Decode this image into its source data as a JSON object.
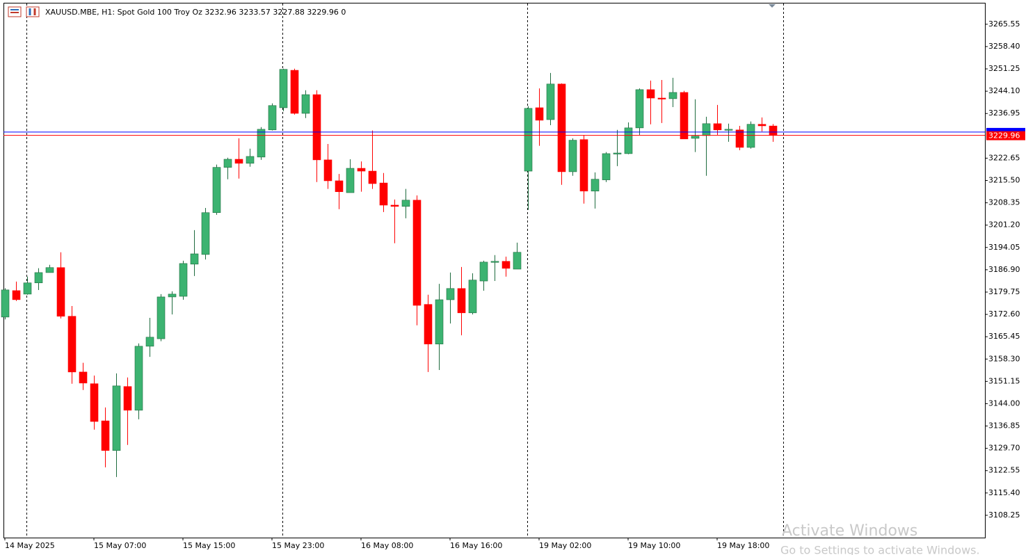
{
  "chart_data": {
    "type": "candlestick",
    "title": "XAUUSD.MBE, H1:  Spot Gold 100 Troy Oz  3232.96 3233.57 3227.88 3229.96  0",
    "categories": [
      "14 May 2025",
      null,
      null,
      null,
      null,
      null,
      null,
      null,
      "15 May 07:00",
      null,
      null,
      null,
      null,
      null,
      null,
      null,
      "15 May 15:00",
      null,
      null,
      null,
      null,
      null,
      null,
      null,
      "15 May 23:00",
      null,
      null,
      null,
      null,
      null,
      null,
      null,
      "16 May 08:00",
      null,
      null,
      null,
      null,
      null,
      null,
      null,
      "16 May 16:00",
      null,
      null,
      null,
      null,
      null,
      null,
      null,
      "19 May 02:00",
      null,
      null,
      null,
      null,
      null,
      null,
      null,
      "19 May 10:00",
      null,
      null,
      null,
      null,
      null,
      null,
      null,
      "19 May 18:00",
      null,
      null,
      null,
      null,
      null
    ],
    "open": [
      3171.75,
      3180.22,
      3179.1,
      3182.7,
      3186.0,
      3187.6,
      3172.0,
      3154.15,
      3150.4,
      3138.5,
      3129.0,
      3149.5,
      3141.9,
      3162.4,
      3164.8,
      3178.2,
      3178.4,
      3188.7,
      3191.8,
      3205.2,
      3219.7,
      3222.3,
      3221.0,
      3223.0,
      3231.7,
      3238.8,
      3250.8,
      3237.0,
      3243.0,
      3222.1,
      3215.4,
      3211.6,
      3219.4,
      3218.5,
      3214.7,
      3207.6,
      3207.2,
      3209.2,
      3175.8,
      3163.1,
      3177.3,
      3180.9,
      3173.1,
      3183.3,
      3189.35,
      3189.6,
      3187.1,
      3218.5,
      3238.8,
      3235.0,
      3246.4,
      3218.3,
      3228.6,
      3212.1,
      3215.7,
      3224.1,
      3224.1,
      3232.35,
      3244.6,
      3241.9,
      3241.7,
      3243.7,
      3229.0,
      3229.9,
      3233.7,
      3231.7,
      3231.7,
      3226.1,
      3233.5,
      3232.96
    ],
    "high": [
      3181.0,
      3183.1,
      3184.7,
      3187.4,
      3188.5,
      3192.5,
      3175.3,
      3157.1,
      3153.0,
      3142.8,
      3153.7,
      3152.4,
      3163.3,
      3171.5,
      3179.1,
      3180.0,
      3189.8,
      3199.6,
      3206.7,
      3220.6,
      3222.8,
      3229.0,
      3225.7,
      3232.6,
      3240.2,
      3251.3,
      3251.3,
      3244.4,
      3244.4,
      3227.2,
      3217.6,
      3222.3,
      3221.6,
      3231.5,
      3217.9,
      3209.4,
      3212.8,
      3210.7,
      3178.9,
      3182.4,
      3186.0,
      3187.8,
      3185.8,
      3189.8,
      3191.6,
      3191.1,
      3195.6,
      3239.3,
      3245.0,
      3249.95,
      3246.6,
      3229.0,
      3230.1,
      3218.1,
      3224.6,
      3231.7,
      3234.1,
      3245.0,
      3247.5,
      3247.7,
      3248.4,
      3244.2,
      3241.5,
      3235.9,
      3239.7,
      3233.7,
      3233.0,
      3234.4,
      3235.7,
      3233.57
    ],
    "low": [
      3171.0,
      3176.9,
      3178.9,
      3180.4,
      3186.0,
      3171.3,
      3150.4,
      3148.4,
      3135.7,
      3123.6,
      3120.5,
      3130.8,
      3139.0,
      3159.0,
      3164.0,
      3172.6,
      3177.3,
      3184.9,
      3190.2,
      3204.5,
      3215.9,
      3216.1,
      3219.9,
      3222.1,
      3231.5,
      3237.7,
      3236.6,
      3235.5,
      3215.0,
      3212.8,
      3206.3,
      3211.6,
      3211.9,
      3212.8,
      3205.4,
      3195.4,
      3203.4,
      3169.1,
      3154.15,
      3154.8,
      3169.7,
      3165.9,
      3172.6,
      3180.2,
      3183.3,
      3184.7,
      3187.1,
      3206.1,
      3226.6,
      3233.2,
      3214.1,
      3217.0,
      3208.1,
      3206.5,
      3215.0,
      3220.1,
      3223.9,
      3230.1,
      3233.5,
      3233.9,
      3239.0,
      3228.8,
      3224.6,
      3217.0,
      3230.1,
      3227.9,
      3225.2,
      3225.7,
      3231.2,
      3227.88
    ],
    "close": [
      3180.45,
      3177.32,
      3182.7,
      3186.0,
      3187.6,
      3172.0,
      3154.15,
      3150.6,
      3138.3,
      3129.0,
      3149.7,
      3141.9,
      3162.4,
      3165.3,
      3178.2,
      3179.1,
      3188.9,
      3192.0,
      3205.2,
      3219.7,
      3222.3,
      3221.0,
      3223.2,
      3231.9,
      3239.5,
      3251.1,
      3237.0,
      3243.0,
      3222.1,
      3215.4,
      3211.9,
      3219.4,
      3218.5,
      3214.5,
      3207.6,
      3207.2,
      3209.2,
      3175.5,
      3163.1,
      3177.3,
      3180.9,
      3173.1,
      3183.6,
      3189.35,
      3189.6,
      3187.35,
      3192.5,
      3238.6,
      3234.8,
      3246.4,
      3218.3,
      3228.4,
      3212.1,
      3215.9,
      3224.1,
      3224.3,
      3232.35,
      3244.6,
      3241.9,
      3241.7,
      3243.7,
      3228.8,
      3229.7,
      3233.7,
      3231.7,
      3231.9,
      3226.1,
      3233.5,
      3233.0,
      3229.96
    ],
    "up_color": "#3cb371",
    "down_color": "#ff0000",
    "bid": 3229.96,
    "bid_color": "#ff0000",
    "ask": 3231.0,
    "ask_color": "#0000ff",
    "ylim": [
      3101.1,
      3272.2
    ],
    "yticks": [
      3265.55,
      {
        "value": 3258.4,
        "label": "3258.40"
      },
      3251.25,
      {
        "value": 3244.1,
        "label": "3244.10"
      },
      3236.95,
      3222.65,
      {
        "value": 3215.5,
        "label": "3215.50"
      },
      3208.35,
      {
        "value": 3201.2,
        "label": "3201.20"
      },
      3194.05,
      {
        "value": 3186.9,
        "label": "3186.90"
      },
      3179.75,
      {
        "value": 3172.6,
        "label": "3172.60"
      },
      3165.45,
      {
        "value": 3158.3,
        "label": "3158.30"
      },
      3151.15,
      {
        "value": 3144,
        "label": "3144.00"
      },
      3136.85,
      {
        "value": 3129.7,
        "label": "3129.70"
      },
      3122.55,
      {
        "value": 3115.4,
        "label": "3115.40"
      },
      3108.25
    ]
  },
  "watermark": {
    "line1": "Activate Windows",
    "line2": "Go to Settings to activate Windows."
  }
}
